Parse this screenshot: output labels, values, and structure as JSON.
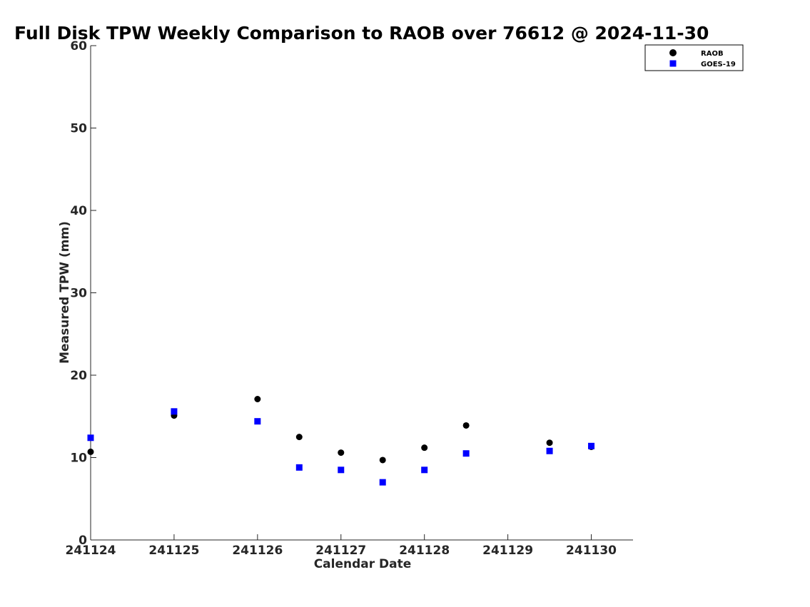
{
  "chart_data": {
    "type": "scatter",
    "title": "Full Disk TPW Weekly Comparison to RAOB over 76612 @ 2024-11-30",
    "xlabel": "Calendar Date",
    "ylabel": "Measured TPW (mm)",
    "xlim": [
      0,
      6.5
    ],
    "ylim": [
      0,
      60
    ],
    "x_ticks": [
      0,
      1,
      2,
      3,
      4,
      5,
      6
    ],
    "x_tick_labels": [
      "241124",
      "241125",
      "241126",
      "241127",
      "241128",
      "241129",
      "241130"
    ],
    "y_ticks": [
      0,
      10,
      20,
      30,
      40,
      50,
      60
    ],
    "y_tick_labels": [
      "0",
      "10",
      "20",
      "30",
      "40",
      "50",
      "60"
    ],
    "grid": false,
    "legend": {
      "placement": "top-right"
    },
    "series": [
      {
        "name": "RAOB",
        "marker": "circle",
        "color": "#000000",
        "x": [
          0,
          1,
          2,
          2.5,
          3,
          3.5,
          4,
          4.5,
          5.5,
          6
        ],
        "y": [
          10.7,
          15.1,
          17.1,
          12.5,
          10.6,
          9.7,
          11.2,
          13.9,
          11.8,
          11.3
        ]
      },
      {
        "name": "GOES-19",
        "marker": "square",
        "color": "#0000ff",
        "x": [
          0,
          1,
          2,
          2.5,
          3,
          3.5,
          4,
          4.5,
          5.5,
          6
        ],
        "y": [
          12.4,
          15.6,
          14.4,
          8.8,
          8.5,
          7.0,
          8.5,
          10.5,
          10.8,
          11.4
        ]
      }
    ]
  }
}
